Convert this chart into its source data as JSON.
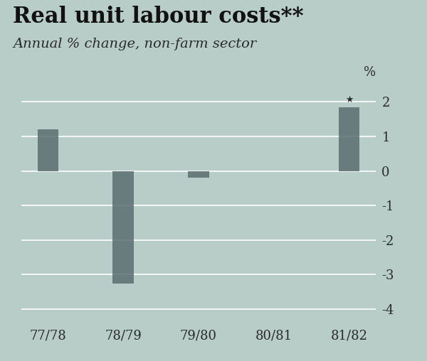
{
  "title": "Real unit labour costs**",
  "subtitle": "Annual % change, non-farm sector",
  "ylabel_right": "%",
  "categories": [
    "77/78",
    "78/79",
    "79/80",
    "80/81",
    "81/82"
  ],
  "values": [
    1.2,
    -3.25,
    -0.2,
    0.0,
    1.85
  ],
  "bar_color": "#5a6e72",
  "background_color": "#b8cdc7",
  "grid_color": "#ffffff",
  "ylim": [
    -4.3,
    2.6
  ],
  "yticks": [
    -4,
    -3,
    -2,
    -1,
    0,
    1,
    2
  ],
  "star_annotation_index": 4,
  "star_annotation_text": "★",
  "title_fontsize": 22,
  "subtitle_fontsize": 14,
  "tick_fontsize": 13,
  "bar_width": 0.28
}
